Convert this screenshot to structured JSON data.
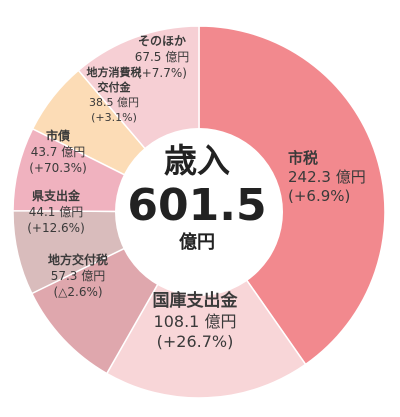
{
  "chart_data": {
    "type": "pie",
    "total_label": "歳入",
    "total_value": "601.5",
    "total_unit": "億円",
    "unit": "億円",
    "slices": [
      {
        "name": "市税",
        "value": 242.3,
        "value_text": "242.3 億円",
        "change": "(+6.9%)",
        "color": "#f2898e"
      },
      {
        "name": "国庫支出金",
        "value": 108.1,
        "value_text": "108.1 億円",
        "change": "(+26.7%)",
        "color": "#f8d6d8"
      },
      {
        "name": "地方交付税",
        "value": 57.3,
        "value_text": "57.3 億円",
        "change": "(△2.6%)",
        "color": "#dfa7ad"
      },
      {
        "name": "県支出金",
        "value": 44.1,
        "value_text": "44.1 億円",
        "change": "(+12.6%)",
        "color": "#d9bcbc"
      },
      {
        "name": "市債",
        "value": 43.7,
        "value_text": "43.7 億円",
        "change": "(+70.3%)",
        "color": "#f0b2bf"
      },
      {
        "name": "地方消費税交付金",
        "name_lines": [
          "地方消費税",
          "交付金"
        ],
        "value": 38.5,
        "value_text": "38.5 億円",
        "change": "(+3.1%)",
        "color": "#fcdcb6"
      },
      {
        "name": "そのほか",
        "value": 67.5,
        "value_text": "67.5 億円",
        "change": "(+7.7%)",
        "color": "#f6cfd4"
      }
    ]
  }
}
